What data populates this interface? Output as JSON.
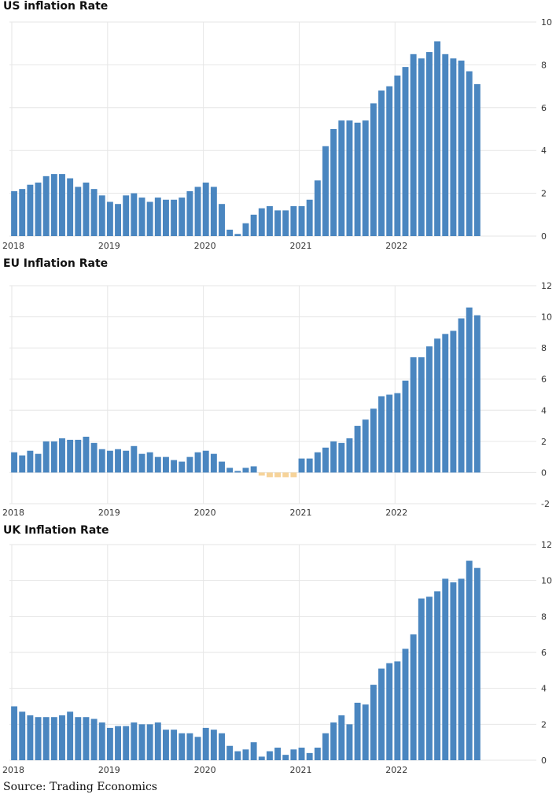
{
  "footer": {
    "source": "Source: Trading Economics"
  },
  "colors": {
    "bar": "#4a86c0",
    "bar_negative": "#f6d39a",
    "grid": "#e6e6e6"
  },
  "chart_data": [
    {
      "type": "bar",
      "title": "US inflation Rate",
      "x_tick_labels": [
        "2018",
        "2019",
        "2020",
        "2021",
        "2022"
      ],
      "categories_start": "2018-01",
      "ylim": [
        0,
        10
      ],
      "y_ticks": [
        0,
        2,
        4,
        6,
        8,
        10
      ],
      "grid": true,
      "values": [
        2.1,
        2.2,
        2.4,
        2.5,
        2.8,
        2.9,
        2.9,
        2.7,
        2.3,
        2.5,
        2.2,
        1.9,
        1.6,
        1.5,
        1.9,
        2.0,
        1.8,
        1.6,
        1.8,
        1.7,
        1.7,
        1.8,
        2.1,
        2.3,
        2.5,
        2.3,
        1.5,
        0.3,
        0.1,
        0.6,
        1.0,
        1.3,
        1.4,
        1.2,
        1.2,
        1.4,
        1.4,
        1.7,
        2.6,
        4.2,
        5.0,
        5.4,
        5.4,
        5.3,
        5.4,
        6.2,
        6.8,
        7.0,
        7.5,
        7.9,
        8.5,
        8.3,
        8.6,
        9.1,
        8.5,
        8.3,
        8.2,
        7.7,
        7.1
      ]
    },
    {
      "type": "bar",
      "title": "EU Inflation Rate",
      "x_tick_labels": [
        "2018",
        "2019",
        "2020",
        "2021",
        "2022"
      ],
      "categories_start": "2018-01",
      "ylim": [
        -2,
        12
      ],
      "y_ticks": [
        -2,
        0,
        2,
        4,
        6,
        8,
        10,
        12
      ],
      "grid": true,
      "values": [
        1.3,
        1.1,
        1.4,
        1.2,
        2.0,
        2.0,
        2.2,
        2.1,
        2.1,
        2.3,
        1.9,
        1.5,
        1.4,
        1.5,
        1.4,
        1.7,
        1.2,
        1.3,
        1.0,
        1.0,
        0.8,
        0.7,
        1.0,
        1.3,
        1.4,
        1.2,
        0.7,
        0.3,
        0.1,
        0.3,
        0.4,
        -0.2,
        -0.3,
        -0.3,
        -0.3,
        -0.3,
        0.9,
        0.9,
        1.3,
        1.6,
        2.0,
        1.9,
        2.2,
        3.0,
        3.4,
        4.1,
        4.9,
        5.0,
        5.1,
        5.9,
        7.4,
        7.4,
        8.1,
        8.6,
        8.9,
        9.1,
        9.9,
        10.6,
        10.1
      ]
    },
    {
      "type": "bar",
      "title": "UK Inflation Rate",
      "x_tick_labels": [
        "2018",
        "2019",
        "2020",
        "2021",
        "2022"
      ],
      "categories_start": "2018-01",
      "ylim": [
        0,
        12
      ],
      "y_ticks": [
        0,
        2,
        4,
        6,
        8,
        10,
        12
      ],
      "grid": true,
      "values": [
        3.0,
        2.7,
        2.5,
        2.4,
        2.4,
        2.4,
        2.5,
        2.7,
        2.4,
        2.4,
        2.3,
        2.1,
        1.8,
        1.9,
        1.9,
        2.1,
        2.0,
        2.0,
        2.1,
        1.7,
        1.7,
        1.5,
        1.5,
        1.3,
        1.8,
        1.7,
        1.5,
        0.8,
        0.5,
        0.6,
        1.0,
        0.2,
        0.5,
        0.7,
        0.3,
        0.6,
        0.7,
        0.4,
        0.7,
        1.5,
        2.1,
        2.5,
        2.0,
        3.2,
        3.1,
        4.2,
        5.1,
        5.4,
        5.5,
        6.2,
        7.0,
        9.0,
        9.1,
        9.4,
        10.1,
        9.9,
        10.1,
        11.1,
        10.7
      ]
    }
  ]
}
